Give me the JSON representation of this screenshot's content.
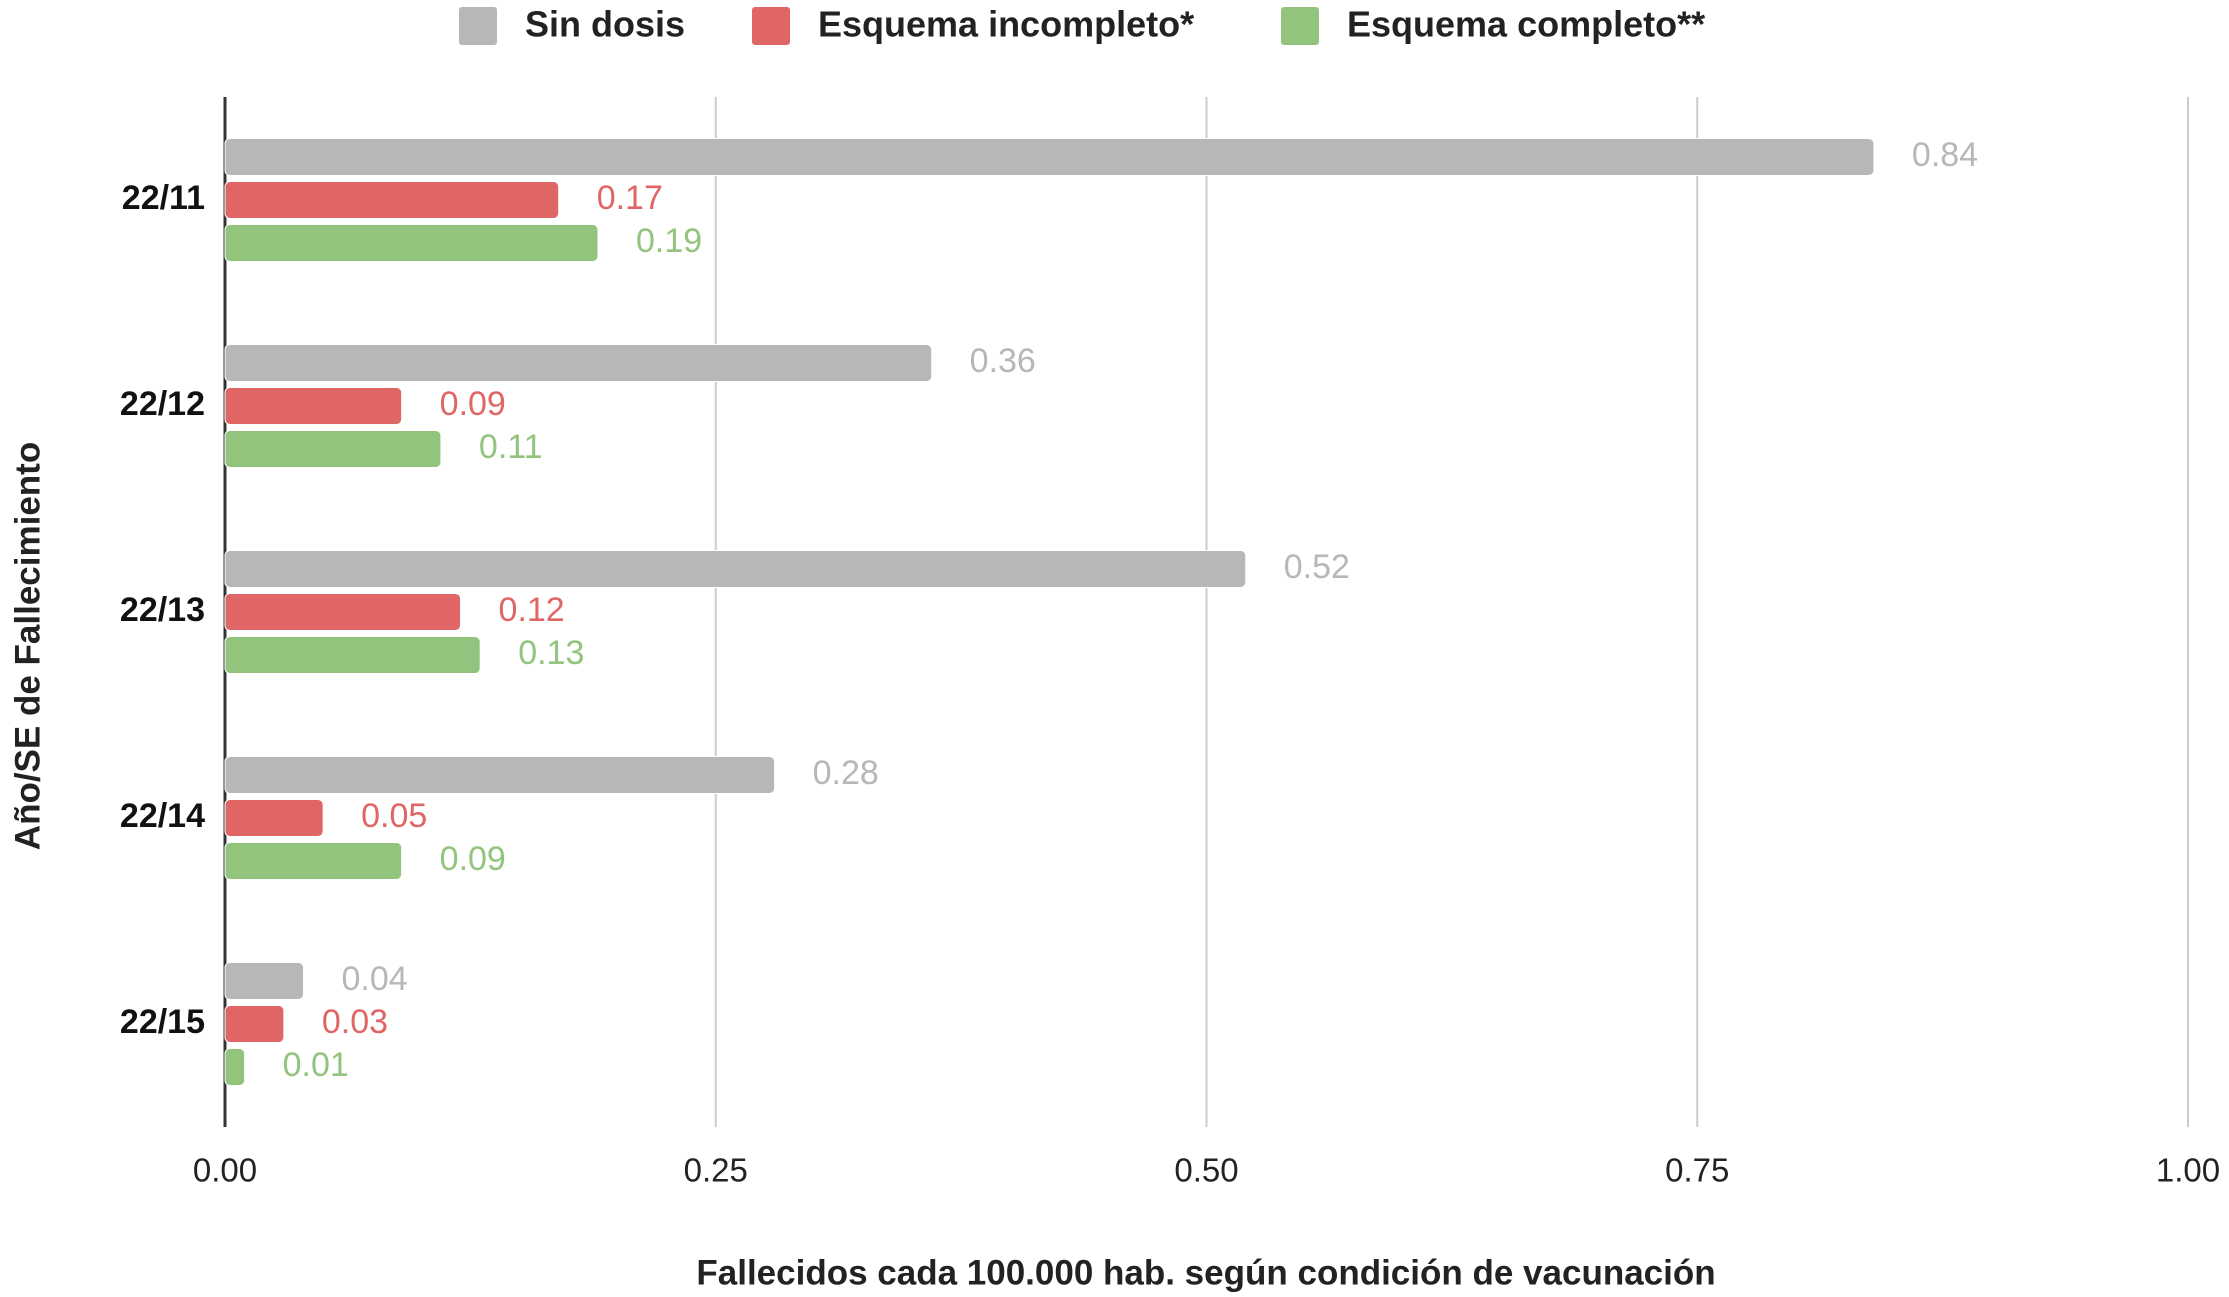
{
  "chart_data": {
    "type": "bar",
    "orientation": "horizontal",
    "x_label": "Fallecidos cada 100.000 hab. según condición de vacunación",
    "y_label": "Año/SE de Fallecimiento",
    "categories": [
      "22/11",
      "22/12",
      "22/13",
      "22/14",
      "22/15"
    ],
    "series": [
      {
        "name": "Sin dosis",
        "color": "#b7b7b7",
        "values": [
          0.84,
          0.36,
          0.52,
          0.28,
          0.04
        ]
      },
      {
        "name": "Esquema incompleto*",
        "color": "#e06666",
        "values": [
          0.17,
          0.09,
          0.12,
          0.05,
          0.03
        ]
      },
      {
        "name": "Esquema completo**",
        "color": "#93c47d",
        "values": [
          0.19,
          0.11,
          0.13,
          0.09,
          0.01
        ]
      }
    ],
    "xlim": [
      0,
      1
    ],
    "xticks": [
      {
        "value": 0,
        "label": "0.00"
      },
      {
        "value": 0.25,
        "label": "0.25"
      },
      {
        "value": 0.5,
        "label": "0.50"
      },
      {
        "value": 0.75,
        "label": "0.75"
      },
      {
        "value": 1,
        "label": "1.00"
      }
    ],
    "grid": true,
    "legend": "top"
  }
}
